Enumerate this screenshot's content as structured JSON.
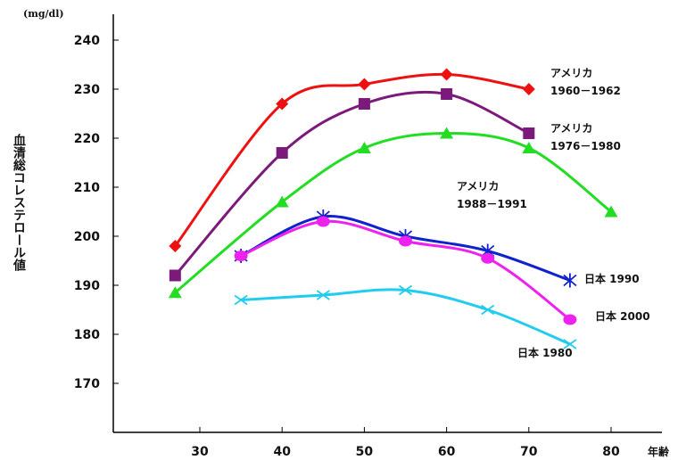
{
  "chart_data": {
    "type": "line",
    "ylabel": "血清総コレステロール値",
    "y_unit": "(mg/dl)",
    "xlabel": "年齢",
    "xlim": [
      20,
      85
    ],
    "ylim": [
      165,
      245
    ],
    "x_ticks": [
      "30",
      "40",
      "50",
      "60",
      "70",
      "80"
    ],
    "y_ticks": [
      "170",
      "180",
      "190",
      "200",
      "210",
      "220",
      "230",
      "240"
    ],
    "grid": false,
    "series": [
      {
        "name_lines": [
          "アメリカ",
          "1960－1962"
        ],
        "color": "#ee1111",
        "marker": "diamond",
        "x": [
          27,
          40,
          50,
          60,
          70
        ],
        "y": [
          198,
          227,
          231,
          233,
          230
        ]
      },
      {
        "name_lines": [
          "アメリカ",
          "1976－1980"
        ],
        "color": "#7b1a7b",
        "marker": "square",
        "x": [
          27,
          40,
          50,
          60,
          70
        ],
        "y": [
          192,
          217,
          227,
          229,
          221
        ]
      },
      {
        "name_lines": [
          "アメリカ",
          "1988－1991"
        ],
        "color": "#22dd22",
        "marker": "triangle",
        "x": [
          27,
          40,
          50,
          60,
          70,
          80
        ],
        "y": [
          188.5,
          207,
          218,
          221,
          218,
          205
        ]
      },
      {
        "name_lines": [
          "日本 1990"
        ],
        "color": "#1122cc",
        "marker": "star",
        "x": [
          35,
          45,
          55,
          65,
          75
        ],
        "y": [
          196,
          204,
          200,
          197,
          191
        ]
      },
      {
        "name_lines": [
          "日本 2000"
        ],
        "color": "#ee22ee",
        "marker": "circle",
        "x": [
          35,
          45,
          55,
          65,
          75
        ],
        "y": [
          196,
          203,
          199,
          195.5,
          183
        ]
      },
      {
        "name_lines": [
          "日本 1980"
        ],
        "color": "#22ccee",
        "marker": "x",
        "x": [
          35,
          45,
          55,
          65,
          75
        ],
        "y": [
          187,
          188,
          189,
          185,
          178
        ]
      }
    ]
  }
}
